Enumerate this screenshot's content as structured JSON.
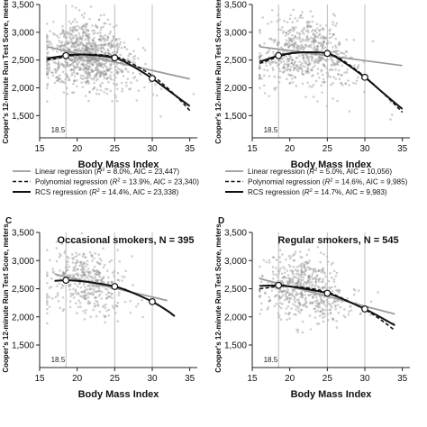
{
  "figure": {
    "panels": [
      {
        "letter": "",
        "title": "",
        "ylabel": "Cooper's 12-minute Run Test Score, meters",
        "xlabel": "Body Mass Index",
        "legend": [
          {
            "style": "linear",
            "prefix": "Linear regression (",
            "r2": "R",
            "sup": "2",
            "rest": " = 8.0%, AIC = 23,447)"
          },
          {
            "style": "poly",
            "prefix": "Polynomial regression (",
            "r2": "R",
            "sup": "2",
            "rest": " = 13.9%, AIC = 23,340)"
          },
          {
            "style": "rcs",
            "prefix": "RCS regression (",
            "r2": "R",
            "sup": "2",
            "rest": " = 14.4%, AIC = 23,338)"
          }
        ]
      },
      {
        "letter": "",
        "title": "",
        "ylabel": "Cooper's 12-minute Run Test Score, meters",
        "xlabel": "Body Mass Index",
        "legend": [
          {
            "style": "linear",
            "prefix": "Linear regression (",
            "r2": "R",
            "sup": "2",
            "rest": " = 5.0%, AIC = 10,056)"
          },
          {
            "style": "poly",
            "prefix": "Polynomial regression (",
            "r2": "R",
            "sup": "2",
            "rest": " = 14.6%, AIC = 9,985)"
          },
          {
            "style": "rcs",
            "prefix": "RCS regression (",
            "r2": "R",
            "sup": "2",
            "rest": " = 14.7%, AIC = 9,983)"
          }
        ]
      },
      {
        "letter": "C",
        "title": "Occasional smokers, N = 395",
        "ylabel": "Cooper's 12-minute Run Test Score, meters",
        "xlabel": "Body Mass Index",
        "legend": []
      },
      {
        "letter": "D",
        "title": "Regular smokers, N = 545",
        "ylabel": "Cooper's 12-minute Run Test Score, meters",
        "xlabel": "Body Mass Index",
        "legend": []
      }
    ]
  },
  "chart_data": [
    {
      "type": "scatter",
      "title": "",
      "xlabel": "Body Mass Index",
      "ylabel": "Cooper's 12-minute Run Test Score, meters",
      "xlim": [
        15,
        36
      ],
      "ylim": [
        1100,
        3500
      ],
      "xticks": [
        15,
        20,
        25,
        30,
        35
      ],
      "xtick_labels": [
        "15",
        "20",
        "25",
        "30",
        "35"
      ],
      "yticks": [
        1500,
        2000,
        2500,
        3000,
        3500
      ],
      "ytick_labels": [
        "1,500",
        "2,000",
        "2,500",
        "3,000",
        "3,500"
      ],
      "reference_lines": [
        18.5,
        25,
        30
      ],
      "reference_label": "18.5",
      "grid": false,
      "scatter": {
        "n": 950,
        "center_x": 21.5,
        "spread_x": 2.6,
        "noise_y": 300,
        "seed": 11
      },
      "series": [
        {
          "name": "Linear regression",
          "style": "linear",
          "x": [
            16,
            35
          ],
          "y": [
            2740,
            2160
          ]
        },
        {
          "name": "Polynomial regression",
          "style": "poly",
          "x": [
            16,
            18.5,
            20,
            22,
            25,
            27,
            30,
            32,
            34,
            35
          ],
          "y": [
            2500,
            2560,
            2590,
            2600,
            2560,
            2460,
            2220,
            2000,
            1740,
            1590
          ]
        },
        {
          "name": "RCS regression",
          "style": "rcs",
          "x": [
            16,
            18.5,
            20,
            22,
            25,
            27,
            30,
            32,
            34,
            35
          ],
          "y": [
            2530,
            2580,
            2600,
            2590,
            2540,
            2420,
            2170,
            1970,
            1770,
            1670
          ]
        }
      ],
      "knots": [
        {
          "x": 18.5,
          "y": 2580
        },
        {
          "x": 25,
          "y": 2540
        },
        {
          "x": 30,
          "y": 2170
        }
      ]
    },
    {
      "type": "scatter",
      "title": "",
      "xlabel": "Body Mass Index",
      "ylabel": "Cooper's 12-minute Run Test Score, meters",
      "xlim": [
        15,
        36
      ],
      "ylim": [
        1100,
        3500
      ],
      "xticks": [
        15,
        20,
        25,
        30,
        35
      ],
      "xtick_labels": [
        "15",
        "20",
        "25",
        "30",
        "35"
      ],
      "yticks": [
        1500,
        2000,
        2500,
        3000,
        3500
      ],
      "ytick_labels": [
        "1,500",
        "2,000",
        "2,500",
        "3,000",
        "3,500"
      ],
      "reference_lines": [
        18.5,
        25,
        30
      ],
      "reference_label": "18.5",
      "grid": false,
      "scatter": {
        "n": 650,
        "center_x": 22,
        "spread_x": 2.8,
        "noise_y": 300,
        "seed": 23
      },
      "series": [
        {
          "name": "Linear regression",
          "style": "linear",
          "x": [
            16,
            35
          ],
          "y": [
            2740,
            2400
          ]
        },
        {
          "name": "Polynomial regression",
          "style": "poly",
          "x": [
            16,
            18.5,
            20,
            22,
            25,
            27,
            30,
            32,
            34,
            35
          ],
          "y": [
            2440,
            2560,
            2610,
            2640,
            2620,
            2500,
            2200,
            1960,
            1700,
            1560
          ]
        },
        {
          "name": "RCS regression",
          "style": "rcs",
          "x": [
            16,
            18.5,
            20,
            22,
            25,
            27,
            30,
            32,
            34,
            35
          ],
          "y": [
            2470,
            2580,
            2620,
            2640,
            2620,
            2480,
            2190,
            1960,
            1730,
            1620
          ]
        }
      ],
      "knots": [
        {
          "x": 18.5,
          "y": 2580
        },
        {
          "x": 25,
          "y": 2620
        },
        {
          "x": 30,
          "y": 2190
        }
      ]
    },
    {
      "type": "scatter",
      "title": "Occasional smokers, N = 395",
      "xlabel": "Body Mass Index",
      "ylabel": "Cooper's 12-minute Run Test Score, meters",
      "xlim": [
        15,
        36
      ],
      "ylim": [
        1100,
        3500
      ],
      "xticks": [
        15,
        20,
        25,
        30,
        35
      ],
      "xtick_labels": [
        "15",
        "20",
        "25",
        "30",
        "35"
      ],
      "yticks": [
        1500,
        2000,
        2500,
        3000,
        3500
      ],
      "ytick_labels": [
        "1,500",
        "2,000",
        "2,500",
        "3,000",
        "3,500"
      ],
      "reference_lines": [
        18.5,
        25,
        30
      ],
      "reference_label": "18.5",
      "grid": false,
      "scatter": {
        "n": 395,
        "center_x": 21.5,
        "spread_x": 2.4,
        "noise_y": 280,
        "seed": 37
      },
      "series": [
        {
          "name": "Linear regression",
          "style": "linear",
          "x": [
            17,
            32
          ],
          "y": [
            2760,
            2290
          ]
        },
        {
          "name": "Polynomial regression",
          "style": "poly",
          "x": [
            17,
            18.5,
            20,
            22,
            25,
            27,
            30,
            32,
            33
          ],
          "y": [
            2640,
            2650,
            2640,
            2610,
            2540,
            2450,
            2270,
            2110,
            2010
          ]
        },
        {
          "name": "RCS regression",
          "style": "rcs",
          "x": [
            17,
            18.5,
            20,
            22,
            25,
            27,
            30,
            32,
            33
          ],
          "y": [
            2640,
            2650,
            2640,
            2610,
            2540,
            2450,
            2270,
            2110,
            2010
          ]
        }
      ],
      "knots": [
        {
          "x": 18.5,
          "y": 2650
        },
        {
          "x": 25,
          "y": 2540
        },
        {
          "x": 30,
          "y": 2270
        }
      ]
    },
    {
      "type": "scatter",
      "title": "Regular smokers, N = 545",
      "xlabel": "Body Mass Index",
      "ylabel": "Cooper's 12-minute Run Test Score, meters",
      "xlim": [
        15,
        36
      ],
      "ylim": [
        1100,
        3500
      ],
      "xticks": [
        15,
        20,
        25,
        30,
        35
      ],
      "xtick_labels": [
        "15",
        "20",
        "25",
        "30",
        "35"
      ],
      "yticks": [
        1500,
        2000,
        2500,
        3000,
        3500
      ],
      "ytick_labels": [
        "1,500",
        "2,000",
        "2,500",
        "3,000",
        "3,500"
      ],
      "reference_lines": [
        18.5,
        25,
        30
      ],
      "reference_label": "18.5",
      "grid": false,
      "scatter": {
        "n": 545,
        "center_x": 22,
        "spread_x": 2.7,
        "noise_y": 300,
        "seed": 53
      },
      "series": [
        {
          "name": "Linear regression",
          "style": "linear",
          "x": [
            16,
            34
          ],
          "y": [
            2680,
            2050
          ]
        },
        {
          "name": "Polynomial regression",
          "style": "poly",
          "x": [
            16,
            18.5,
            20,
            22,
            25,
            27,
            30,
            32,
            34
          ],
          "y": [
            2500,
            2540,
            2540,
            2520,
            2440,
            2330,
            2130,
            1960,
            1760
          ]
        },
        {
          "name": "RCS regression",
          "style": "rcs",
          "x": [
            16,
            18.5,
            20,
            22,
            25,
            27,
            30,
            32,
            34
          ],
          "y": [
            2550,
            2560,
            2540,
            2500,
            2420,
            2320,
            2140,
            2000,
            1850
          ]
        }
      ],
      "knots": [
        {
          "x": 18.5,
          "y": 2560
        },
        {
          "x": 25,
          "y": 2420
        },
        {
          "x": 30,
          "y": 2140
        }
      ]
    }
  ]
}
